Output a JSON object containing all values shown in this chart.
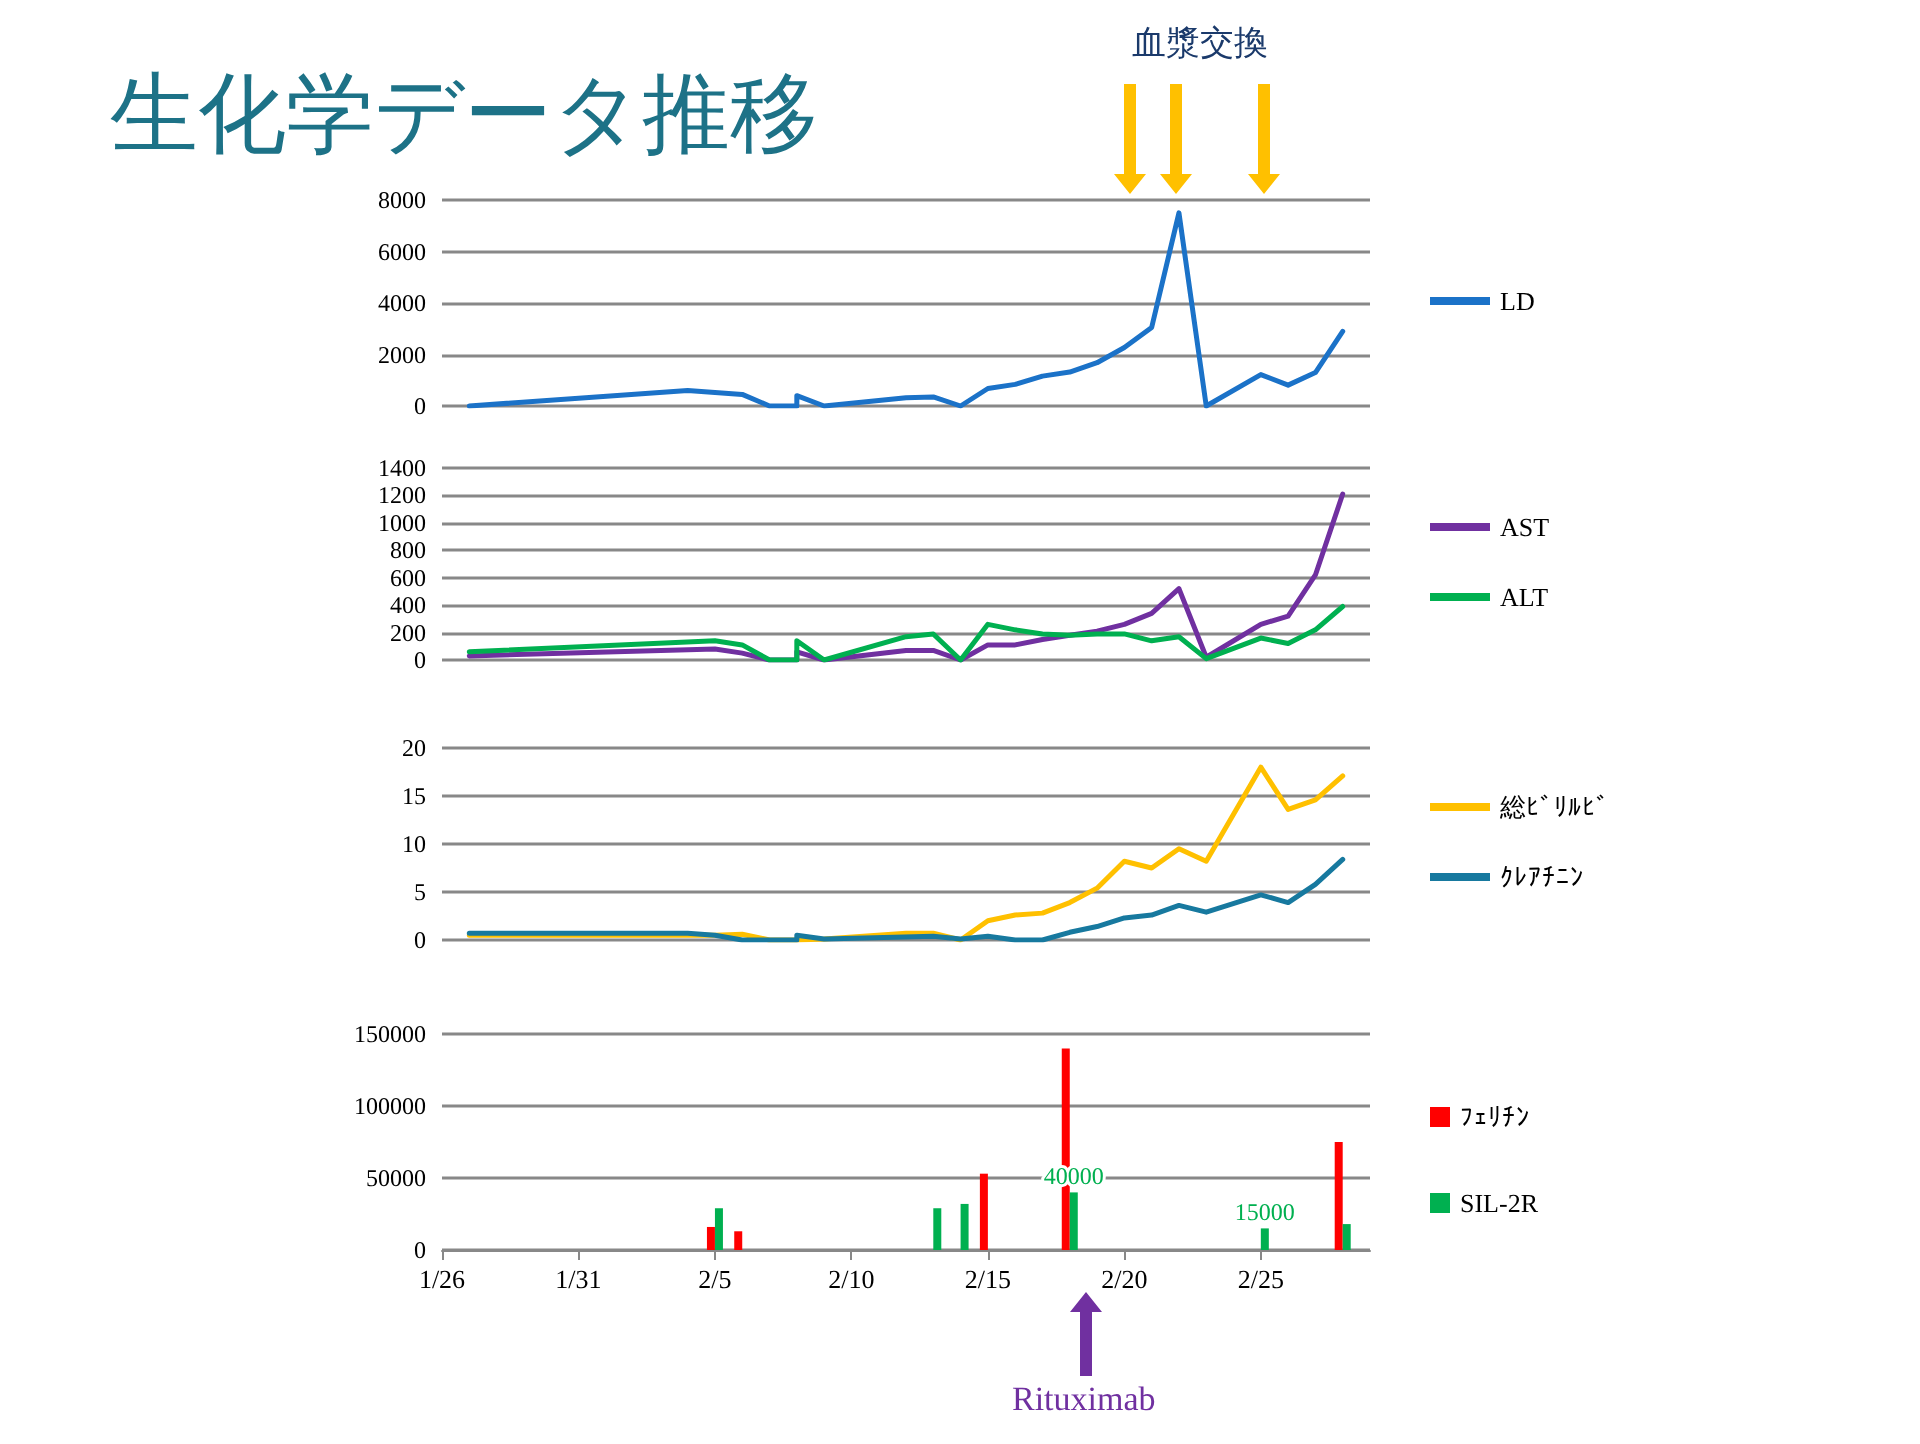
{
  "chart_data": [
    {
      "type": "line",
      "title": "生化学データ推移",
      "annotations": [
        "血漿交換"
      ],
      "xlim": [
        "--01-26",
        "--03-01"
      ],
      "ylim": [
        0,
        8000
      ],
      "yticks": [
        0,
        2000,
        4000,
        6000,
        8000
      ],
      "grid": "y",
      "legend": "right",
      "marker": "none",
      "tick_labels": "y",
      "series": [
        {
          "name": "LD",
          "color": "#1b72c8",
          "x": [
            "--01-27",
            "--02-04",
            "--02-06",
            "--02-07",
            "--02-08",
            "--02-08",
            "--02-09",
            "--02-12",
            "--02-13",
            "--02-14",
            "--02-15",
            "--02-16",
            "--02-17",
            "--02-18",
            "--02-19",
            "--02-20",
            "--02-21",
            "--02-22",
            "--02-23",
            "--02-25",
            "--02-26",
            "--02-27",
            "--02-28"
          ],
          "values": [
            0,
            600,
            450,
            0,
            0,
            400,
            0,
            320,
            350,
            0,
            680,
            840,
            1160,
            1320,
            1680,
            2270,
            3050,
            7500,
            0,
            1220,
            810,
            1300,
            2900
          ]
        }
      ]
    },
    {
      "type": "line",
      "xlim": [
        "--01-26",
        "--03-01"
      ],
      "ylim": [
        0,
        1400
      ],
      "yticks": [
        0,
        200,
        400,
        600,
        800,
        1000,
        1200,
        1400
      ],
      "grid": "y",
      "legend": "right",
      "marker": "none",
      "tick_labels": "y",
      "series": [
        {
          "name": "AST",
          "color": "#7030a0",
          "x": [
            "--01-27",
            "--02-05",
            "--02-06",
            "--02-07",
            "--02-08",
            "--02-08",
            "--02-09",
            "--02-12",
            "--02-13",
            "--02-14",
            "--02-15",
            "--02-16",
            "--02-17",
            "--02-18",
            "--02-19",
            "--02-20",
            "--02-21",
            "--02-22",
            "--02-23",
            "--02-25",
            "--02-26",
            "--02-27",
            "--02-28"
          ],
          "values": [
            30,
            80,
            50,
            0,
            0,
            60,
            0,
            70,
            70,
            0,
            110,
            110,
            150,
            180,
            210,
            260,
            340,
            520,
            20,
            260,
            320,
            620,
            1210
          ]
        },
        {
          "name": "ALT",
          "color": "#00b050",
          "x": [
            "--01-27",
            "--02-05",
            "--02-06",
            "--02-07",
            "--02-08",
            "--02-08",
            "--02-09",
            "--02-12",
            "--02-13",
            "--02-14",
            "--02-15",
            "--02-16",
            "--02-17",
            "--02-18",
            "--02-19",
            "--02-20",
            "--02-21",
            "--02-22",
            "--02-23",
            "--02-25",
            "--02-26",
            "--02-27",
            "--02-28"
          ],
          "values": [
            60,
            140,
            110,
            0,
            0,
            140,
            0,
            170,
            190,
            0,
            260,
            220,
            190,
            180,
            190,
            190,
            140,
            170,
            10,
            160,
            120,
            220,
            390
          ]
        }
      ]
    },
    {
      "type": "line",
      "xlim": [
        "--01-26",
        "--03-01"
      ],
      "ylim": [
        0,
        20
      ],
      "yticks": [
        0,
        5,
        10,
        15,
        20
      ],
      "grid": "y",
      "legend": "right",
      "marker": "none",
      "tick_labels": "y",
      "series": [
        {
          "name": "総ﾋﾞﾘﾙﾋﾞ",
          "color": "#ffc000",
          "x": [
            "--01-27",
            "--02-05",
            "--02-06",
            "--02-07",
            "--02-08",
            "--02-09",
            "--02-12",
            "--02-13",
            "--02-14",
            "--02-15",
            "--02-16",
            "--02-17",
            "--02-18",
            "--02-19",
            "--02-20",
            "--02-21",
            "--02-22",
            "--02-23",
            "--02-25",
            "--02-26",
            "--02-27",
            "--02-28"
          ],
          "values": [
            0.5,
            0.5,
            0.6,
            0,
            0,
            0.1,
            0.7,
            0.7,
            0,
            2.0,
            2.6,
            2.8,
            3.9,
            5.4,
            8.2,
            7.5,
            9.5,
            8.2,
            18.0,
            13.6,
            14.6,
            17.1
          ]
        },
        {
          "name": "ｸﾚｱﾁﾆﾝ",
          "color": "#17799f",
          "x": [
            "--01-27",
            "--02-04",
            "--02-05",
            "--02-06",
            "--02-07",
            "--02-08",
            "--02-08",
            "--02-09",
            "--02-13",
            "--02-14",
            "--02-15",
            "--02-16",
            "--02-17",
            "--02-18",
            "--02-19",
            "--02-20",
            "--02-21",
            "--02-22",
            "--02-23",
            "--02-25",
            "--02-26",
            "--02-27",
            "--02-28"
          ],
          "values": [
            0.7,
            0.7,
            0.5,
            0,
            0,
            0,
            0.5,
            0.1,
            0.4,
            0.1,
            0.4,
            0,
            0,
            0.8,
            1.4,
            2.3,
            2.6,
            3.6,
            2.9,
            4.7,
            3.9,
            5.8,
            8.4
          ]
        }
      ]
    },
    {
      "type": "bar",
      "annotations": [
        "Rituximab"
      ],
      "xlim": [
        "--01-26",
        "--03-01"
      ],
      "xticks": [
        {
          "value": "--01-26",
          "label": "1/26"
        },
        {
          "value": "--01-31",
          "label": "1/31"
        },
        {
          "value": "--02-05",
          "label": "2/5"
        },
        {
          "value": "--02-10",
          "label": "2/10"
        },
        {
          "value": "--02-15",
          "label": "2/15"
        },
        {
          "value": "--02-20",
          "label": "2/20"
        },
        {
          "value": "--02-25",
          "label": "2/25"
        }
      ],
      "ylim": [
        0,
        150000
      ],
      "yticks": [
        0,
        50000,
        100000,
        150000
      ],
      "grid": "y",
      "legend": "right",
      "series": [
        {
          "name": "ﾌｪﾘﾁﾝ",
          "color": "#ff0000",
          "x": [
            "--02-05",
            "--02-06",
            "--02-15",
            "--02-18",
            "--02-28"
          ],
          "values": [
            16000,
            13000,
            53000,
            140000,
            75000
          ]
        },
        {
          "name": "SIL-2R",
          "color": "#00b050",
          "x": [
            "--02-05",
            "--02-13",
            "--02-14",
            "--02-18",
            "--02-25",
            "--02-28"
          ],
          "values": [
            29000,
            29000,
            32000,
            40000,
            15000,
            18000
          ],
          "value_labels": [
            null,
            null,
            null,
            "40000",
            "15000",
            null
          ]
        }
      ]
    }
  ]
}
